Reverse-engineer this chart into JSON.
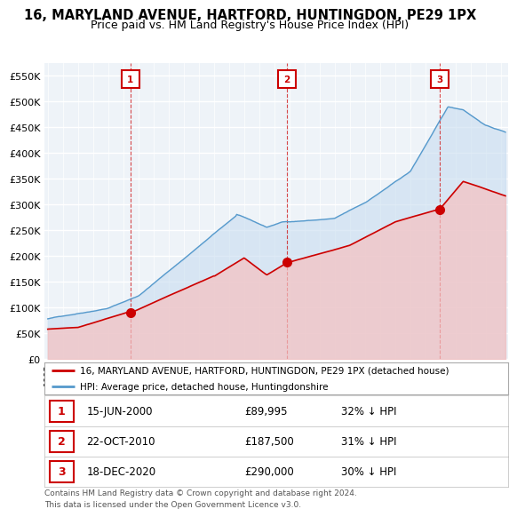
{
  "title": "16, MARYLAND AVENUE, HARTFORD, HUNTINGDON, PE29 1PX",
  "subtitle": "Price paid vs. HM Land Registry's House Price Index (HPI)",
  "title_fontsize": 10.5,
  "subtitle_fontsize": 9,
  "ylim": [
    0,
    575000
  ],
  "yticks": [
    0,
    50000,
    100000,
    150000,
    200000,
    250000,
    300000,
    350000,
    400000,
    450000,
    500000,
    550000
  ],
  "ytick_labels": [
    "£0",
    "£50K",
    "£100K",
    "£150K",
    "£200K",
    "£250K",
    "£300K",
    "£350K",
    "£400K",
    "£450K",
    "£500K",
    "£550K"
  ],
  "bg_color": "#ffffff",
  "chart_bg_color": "#eef3f8",
  "grid_color": "#ffffff",
  "sale_color": "#cc0000",
  "sale_fill": "#f5c0c0",
  "hpi_color": "#5599cc",
  "hpi_fill": "#c8ddf0",
  "sales": [
    {
      "num": 1,
      "date": "15-JUN-2000",
      "price": 89995,
      "pct": "32%",
      "x_year": 2000.46
    },
    {
      "num": 2,
      "date": "22-OCT-2010",
      "price": 187500,
      "pct": "31%",
      "x_year": 2010.81
    },
    {
      "num": 3,
      "date": "18-DEC-2020",
      "price": 290000,
      "pct": "30%",
      "x_year": 2020.96
    }
  ],
  "legend_property": "16, MARYLAND AVENUE, HARTFORD, HUNTINGDON, PE29 1PX (detached house)",
  "legend_hpi": "HPI: Average price, detached house, Huntingdonshire",
  "footer": "Contains HM Land Registry data © Crown copyright and database right 2024.\nThis data is licensed under the Open Government Licence v3.0.",
  "xmin": 1994.8,
  "xmax": 2025.5,
  "xtick_start": 1995,
  "xtick_end": 2025
}
